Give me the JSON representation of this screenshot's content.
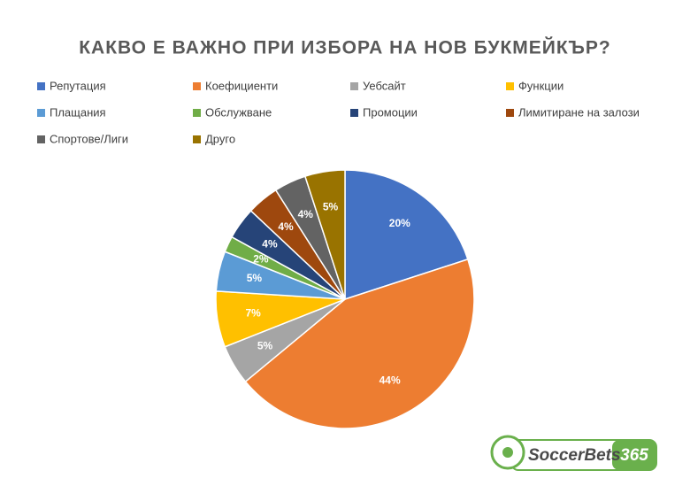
{
  "chart_data": {
    "type": "pie",
    "title": "КАКВО Е ВАЖНО ПРИ ИЗБОРА НА НОВ БУКМЕЙКЪР?",
    "categories": [
      "Репутация",
      "Коефициенти",
      "Уебсайт",
      "Функции",
      "Плащания",
      "Обслужване",
      "Промоции",
      "Лимитиране на залози",
      "Спортове/Лиги",
      "Друго"
    ],
    "values": [
      20,
      44,
      5,
      7,
      5,
      2,
      4,
      4,
      4,
      5
    ],
    "value_labels": [
      "20%",
      "44%",
      "5%",
      "7%",
      "5%",
      "2%",
      "4%",
      "4%",
      "4%",
      "5%"
    ],
    "colors": [
      "#4472c4",
      "#ed7d31",
      "#a5a5a5",
      "#ffc000",
      "#5b9bd5",
      "#70ad47",
      "#264478",
      "#9e480e",
      "#636363",
      "#997300"
    ],
    "legend": "top"
  },
  "logo": {
    "name": "SoccerBets",
    "number": "365"
  }
}
